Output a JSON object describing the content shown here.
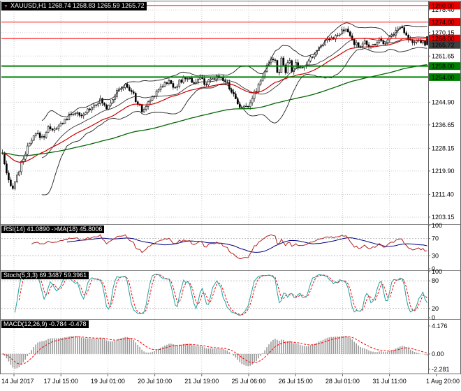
{
  "window": {
    "title_marker": "▼",
    "main_title": "XAUUSD,H1 1268.74 1268.83 1265.59 1265.72"
  },
  "panels": {
    "rsi": {
      "title": "RSI(14) 41.0890 ->MA(18) 45.8006",
      "scale_labels": [
        "100",
        "70",
        "30",
        "0"
      ],
      "levels": [
        70,
        30
      ]
    },
    "stoch": {
      "title": "Stoch(5,3,3) 69.3487 59.3961",
      "scale_labels": [
        "100",
        "80",
        "20",
        "0"
      ],
      "levels": [
        80,
        20
      ]
    },
    "macd": {
      "title": "MACD(12,26,9) -0.784 -0.478",
      "scale_labels": [
        "4.176",
        "0.00",
        "-2.281"
      ]
    }
  },
  "chart_data": {
    "type": "candlestick",
    "title": "XAUUSD H1",
    "open": 1268.74,
    "high": 1268.83,
    "low": 1265.59,
    "close": 1265.72,
    "x_labels": [
      "14 Jul 2017",
      "17 Jul 15:00",
      "19 Jul 01:00",
      "20 Jul 10:00",
      "21 Jul 19:00",
      "25 Jul 06:00",
      "26 Jul 15:00",
      "28 Jul 01:00",
      "31 Jul 11:00",
      "1 Aug 20:00"
    ],
    "y_axis": {
      "min": 1200.6,
      "max": 1281.5,
      "grid_labels": [
        "1278.40",
        "1270.15",
        "1261.65",
        "1244.90",
        "1236.65",
        "1228.15",
        "1219.90",
        "1211.40",
        "1203.15"
      ]
    },
    "price_labels_boxed": [
      {
        "text": "1280.00",
        "price": 1280.0,
        "bg": "#e60000"
      },
      {
        "text": "1274.00",
        "price": 1274.0,
        "bg": "#e60000"
      },
      {
        "text": "1268.00",
        "price": 1268.0,
        "bg": "#e60000"
      },
      {
        "text": "1265.72",
        "price": 1265.72,
        "bg": "#3f3f3f"
      },
      {
        "text": "1258.00",
        "price": 1258.0,
        "bg": "#008000"
      },
      {
        "text": "1254.00",
        "price": 1254.0,
        "bg": "#008000"
      }
    ],
    "hlines": [
      {
        "price": 1280.0,
        "color": "#ff0000",
        "width": 1,
        "kind": "resistance"
      },
      {
        "price": 1274.0,
        "color": "#ff0000",
        "width": 1,
        "kind": "resistance"
      },
      {
        "price": 1268.0,
        "color": "#ff0000",
        "width": 1,
        "kind": "resistance"
      },
      {
        "price": 1258.0,
        "color": "#008000",
        "width": 2,
        "kind": "support"
      },
      {
        "price": 1254.0,
        "color": "#008000",
        "width": 2,
        "kind": "support"
      }
    ],
    "bars": 205,
    "price_path": [
      [
        0.0,
        1226.5
      ],
      [
        0.006,
        1221.0
      ],
      [
        0.014,
        1216.0
      ],
      [
        0.022,
        1213.5
      ],
      [
        0.032,
        1217.0
      ],
      [
        0.042,
        1221.5
      ],
      [
        0.052,
        1226.0
      ],
      [
        0.065,
        1230.0
      ],
      [
        0.08,
        1233.5
      ],
      [
        0.095,
        1232.0
      ],
      [
        0.11,
        1236.0
      ],
      [
        0.125,
        1234.5
      ],
      [
        0.14,
        1237.5
      ],
      [
        0.155,
        1239.5
      ],
      [
        0.17,
        1241.5
      ],
      [
        0.185,
        1239.0
      ],
      [
        0.2,
        1242.0
      ],
      [
        0.215,
        1244.0
      ],
      [
        0.23,
        1245.5
      ],
      [
        0.245,
        1243.0
      ],
      [
        0.26,
        1246.5
      ],
      [
        0.275,
        1249.5
      ],
      [
        0.29,
        1251.0
      ],
      [
        0.305,
        1248.5
      ],
      [
        0.318,
        1244.5
      ],
      [
        0.33,
        1241.5
      ],
      [
        0.345,
        1245.0
      ],
      [
        0.36,
        1248.5
      ],
      [
        0.375,
        1251.0
      ],
      [
        0.39,
        1252.5
      ],
      [
        0.405,
        1250.5
      ],
      [
        0.42,
        1252.5
      ],
      [
        0.435,
        1254.0
      ],
      [
        0.45,
        1252.0
      ],
      [
        0.465,
        1253.5
      ],
      [
        0.48,
        1251.5
      ],
      [
        0.495,
        1253.0
      ],
      [
        0.51,
        1254.5
      ],
      [
        0.525,
        1252.5
      ],
      [
        0.54,
        1249.0
      ],
      [
        0.552,
        1245.0
      ],
      [
        0.565,
        1242.5
      ],
      [
        0.578,
        1244.0
      ],
      [
        0.59,
        1247.0
      ],
      [
        0.602,
        1251.0
      ],
      [
        0.615,
        1255.5
      ],
      [
        0.628,
        1259.0
      ],
      [
        0.64,
        1261.5
      ],
      [
        0.65,
        1254.5
      ],
      [
        0.658,
        1262.0
      ],
      [
        0.666,
        1255.0
      ],
      [
        0.674,
        1261.0
      ],
      [
        0.682,
        1256.0
      ],
      [
        0.69,
        1259.0
      ],
      [
        0.7,
        1256.5
      ],
      [
        0.712,
        1258.0
      ],
      [
        0.725,
        1260.5
      ],
      [
        0.74,
        1263.5
      ],
      [
        0.755,
        1266.5
      ],
      [
        0.77,
        1268.5
      ],
      [
        0.785,
        1268.5
      ],
      [
        0.8,
        1270.5
      ],
      [
        0.812,
        1271.0
      ],
      [
        0.825,
        1267.0
      ],
      [
        0.838,
        1265.0
      ],
      [
        0.85,
        1267.0
      ],
      [
        0.862,
        1264.5
      ],
      [
        0.875,
        1266.0
      ],
      [
        0.888,
        1268.0
      ],
      [
        0.9,
        1266.5
      ],
      [
        0.912,
        1268.5
      ],
      [
        0.925,
        1270.5
      ],
      [
        0.938,
        1272.5
      ],
      [
        0.95,
        1270.0
      ],
      [
        0.962,
        1267.0
      ],
      [
        0.975,
        1266.5
      ],
      [
        0.988,
        1267.0
      ],
      [
        1.0,
        1265.7
      ]
    ],
    "overlays": {
      "bollinger_color": "#222222",
      "ma_fast_color": "#cc0000",
      "ma_slow_color": "#006600"
    },
    "indicators": {
      "rsi": {
        "period": 14,
        "ma_period": 18,
        "last": 41.089,
        "ma_last": 45.8006,
        "color": "#b22222",
        "ma_color": "#000080"
      },
      "stoch": {
        "k": 5,
        "d": 3,
        "slowing": 3,
        "last_main": 69.3487,
        "last_signal": 59.3961,
        "color": "#20a0a0",
        "signal_color": "#ff0000"
      },
      "macd": {
        "fast": 12,
        "slow": 26,
        "signal": 9,
        "last": -0.784,
        "last_signal": -0.478,
        "hist_color": "#9a9a9a",
        "signal_color": "#ff0000"
      }
    }
  }
}
